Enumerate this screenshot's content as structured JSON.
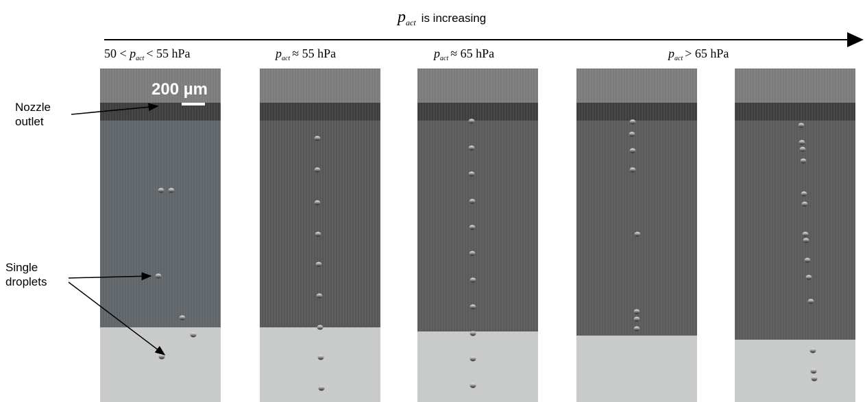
{
  "arrow_label": {
    "variable": "p",
    "subscript": "act",
    "text": "is increasing"
  },
  "panels": [
    {
      "prefix": "50 <",
      "variable": "p",
      "subscript": "act",
      "suffix": "< 55 hPa"
    },
    {
      "variable": "p",
      "subscript": "act",
      "suffix": "≈ 55 hPa"
    },
    {
      "variable": "p",
      "subscript": "act",
      "suffix": "≈ 65 hPa"
    },
    {
      "variable": "p",
      "subscript": "act",
      "suffix": "> 65 hPa"
    }
  ],
  "scale_bar": "200 µm",
  "annotations": [
    [
      "Nozzle",
      "outlet"
    ],
    [
      "Single",
      "droplets"
    ]
  ]
}
